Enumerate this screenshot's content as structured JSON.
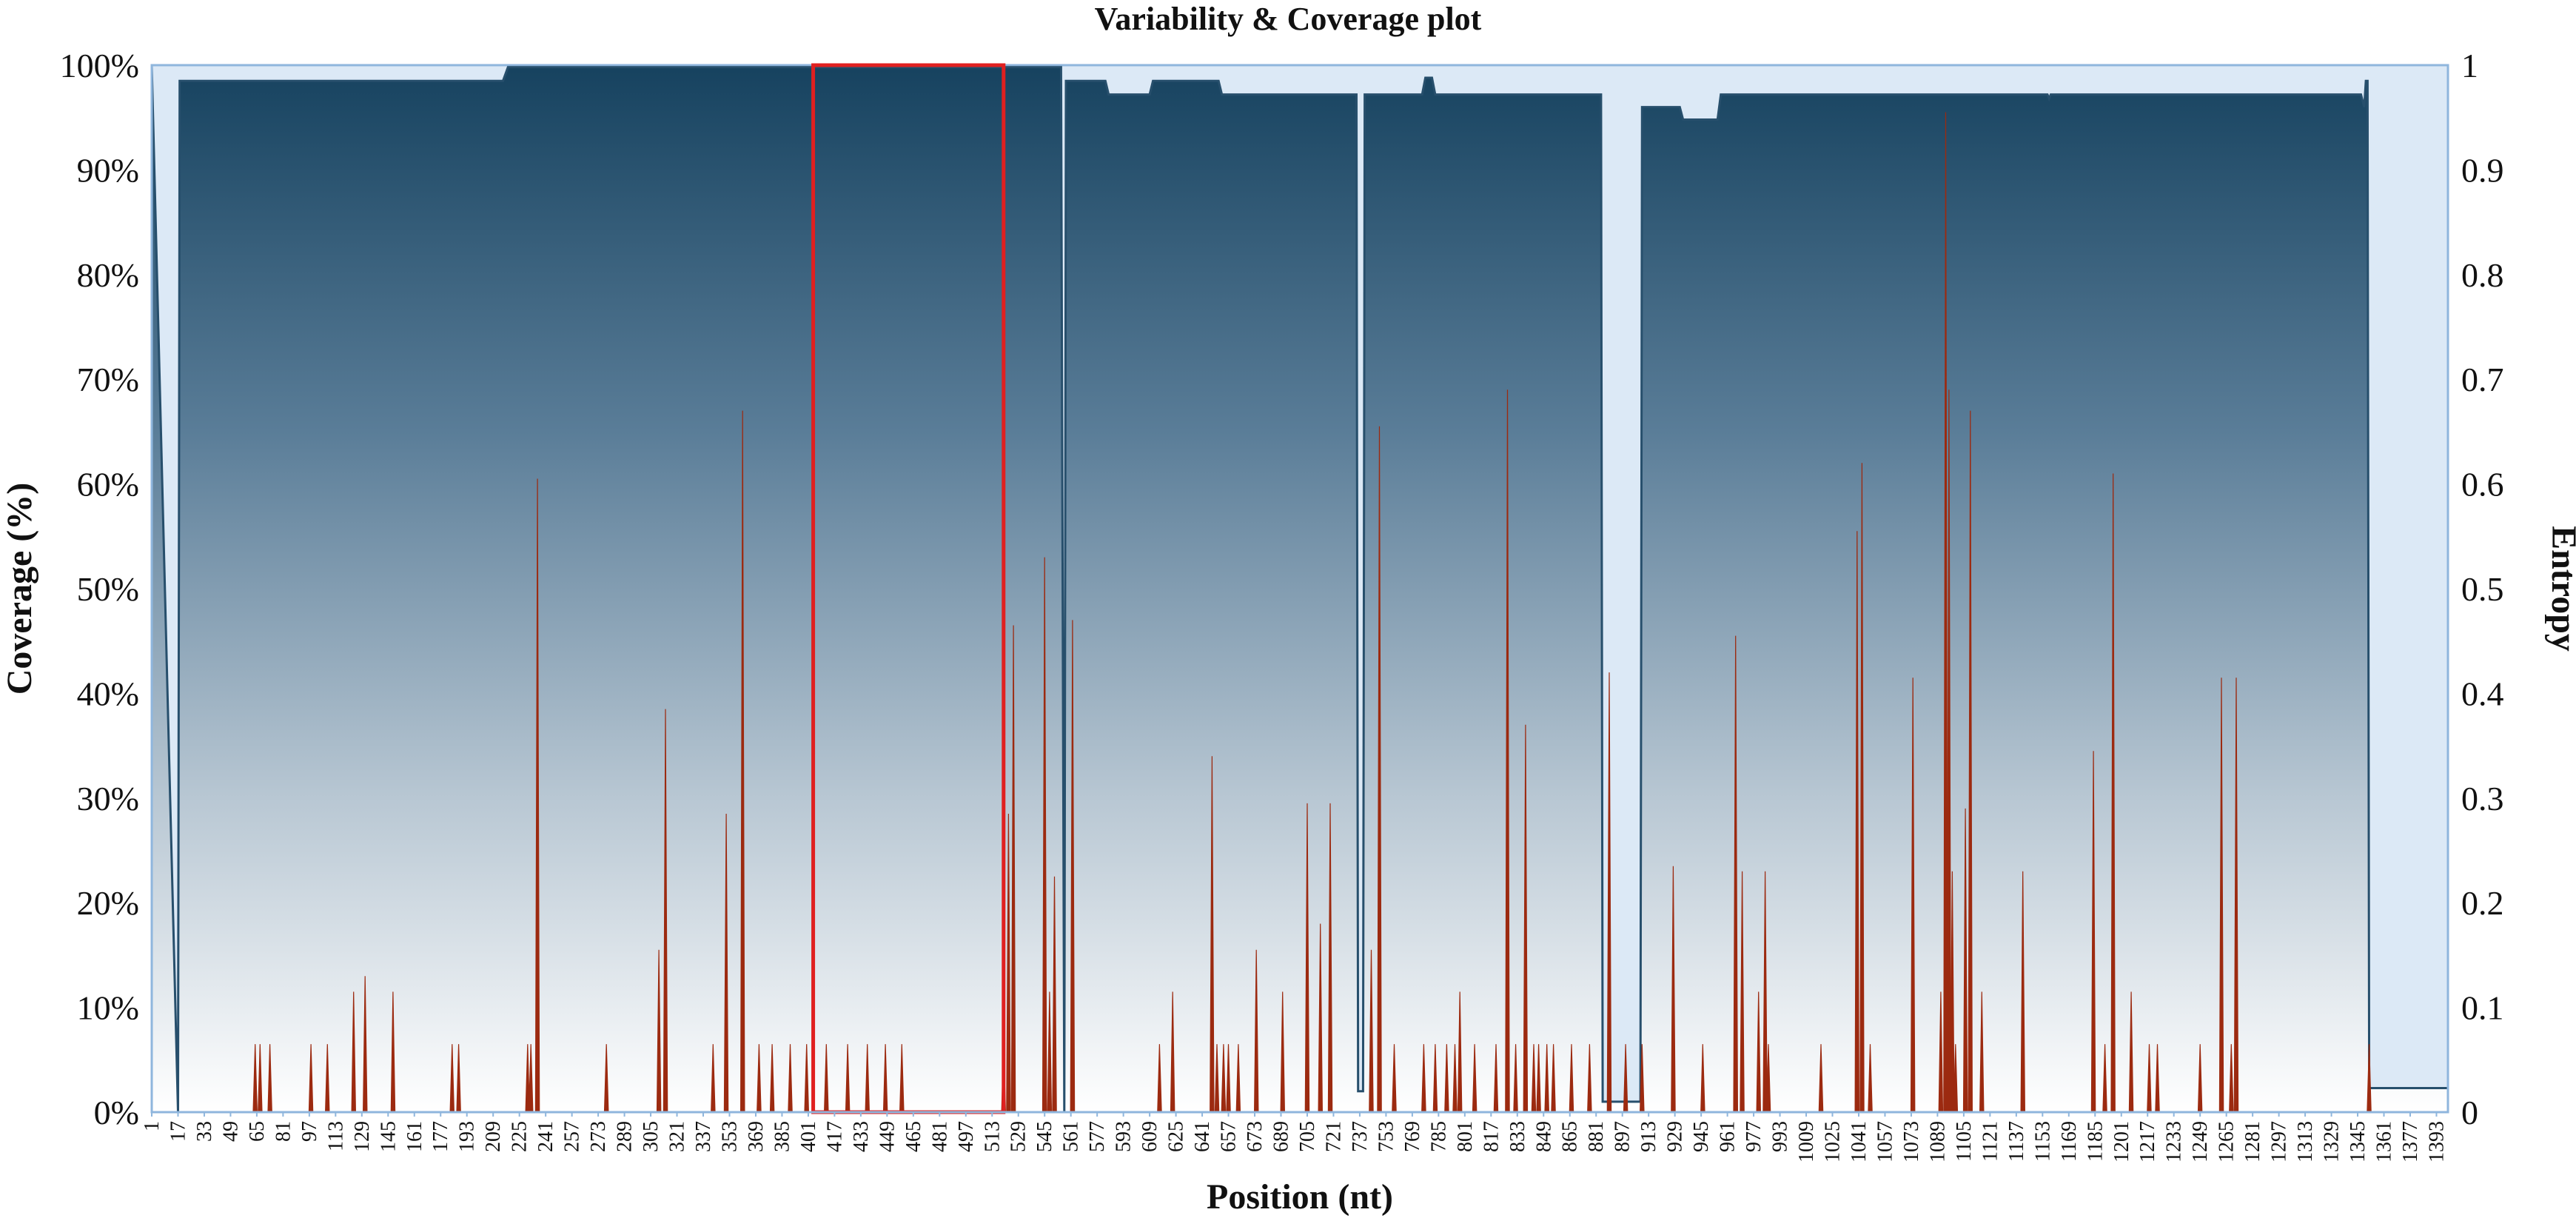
{
  "chart_data": {
    "type": "area",
    "title": "Variability & Coverage plot",
    "xlabel": "Position (nt)",
    "ylabel_left": "Coverage (%)",
    "ylabel_right": "Entropy",
    "xlim": [
      1,
      1400
    ],
    "ylim_left": [
      0,
      100
    ],
    "ylim_right": [
      0,
      1
    ],
    "yticks_left": [
      "0%",
      "10%",
      "20%",
      "30%",
      "40%",
      "50%",
      "60%",
      "70%",
      "80%",
      "90%",
      "100%"
    ],
    "yticks_right": [
      "0",
      "0.1",
      "0.2",
      "0.3",
      "0.4",
      "0.5",
      "0.6",
      "0.7",
      "0.8",
      "0.9",
      "1"
    ],
    "xticks": [
      1,
      17,
      33,
      49,
      65,
      81,
      97,
      113,
      129,
      145,
      161,
      177,
      193,
      209,
      225,
      241,
      257,
      273,
      289,
      305,
      321,
      337,
      353,
      369,
      385,
      401,
      417,
      433,
      449,
      465,
      481,
      497,
      513,
      529,
      545,
      561,
      577,
      593,
      609,
      625,
      641,
      657,
      673,
      689,
      705,
      721,
      737,
      753,
      769,
      785,
      801,
      817,
      833,
      849,
      865,
      881,
      897,
      913,
      929,
      945,
      961,
      977,
      993,
      1009,
      1025,
      1041,
      1057,
      1073,
      1089,
      1105,
      1121,
      1137,
      1153,
      1169,
      1185,
      1201,
      1217,
      1233,
      1249,
      1265,
      1281,
      1297,
      1313,
      1329,
      1345,
      1361,
      1377,
      1393
    ],
    "grid": false,
    "colors": {
      "coverage_top": "#1b4a6b",
      "coverage_bottom": "#ffffff",
      "coverage_line": "#274f6c",
      "background_band": "#dce9f6",
      "background_edge": "#8fb6dd",
      "entropy": "#9c2a10",
      "highlight_box": "#e02020"
    },
    "series": [
      {
        "name": "Coverage",
        "axis": "left",
        "points": [
          [
            1,
            100
          ],
          [
            17,
            0
          ],
          [
            18,
            98.5
          ],
          [
            215,
            98.5
          ],
          [
            218,
            99.8
          ],
          [
            555,
            99.8
          ],
          [
            557,
            0
          ],
          [
            558,
            98.5
          ],
          [
            582,
            98.5
          ],
          [
            584,
            97.2
          ],
          [
            609,
            97.2
          ],
          [
            611,
            98.5
          ],
          [
            651,
            98.5
          ],
          [
            653,
            97.2
          ],
          [
            735,
            97.2
          ],
          [
            736,
            2
          ],
          [
            739,
            2
          ],
          [
            740,
            97.2
          ],
          [
            775,
            97.2
          ],
          [
            777,
            98.8
          ],
          [
            781,
            98.8
          ],
          [
            783,
            97.2
          ],
          [
            884,
            97.2
          ],
          [
            885,
            1
          ],
          [
            908,
            1
          ],
          [
            909,
            96
          ],
          [
            932,
            96
          ],
          [
            934,
            94.8
          ],
          [
            955,
            94.8
          ],
          [
            957,
            97.2
          ],
          [
            1156,
            97.2
          ],
          [
            1157,
            96.8
          ],
          [
            1158,
            97.2
          ],
          [
            1347,
            97.2
          ],
          [
            1349,
            96
          ],
          [
            1350,
            98.5
          ],
          [
            1351,
            98.5
          ],
          [
            1352,
            2.3
          ],
          [
            1400,
            2.3
          ]
        ]
      },
      {
        "name": "Entropy",
        "axis": "right",
        "spikes": [
          [
            64,
            0.065
          ],
          [
            67,
            0.065
          ],
          [
            73,
            0.065
          ],
          [
            98,
            0.065
          ],
          [
            108,
            0.065
          ],
          [
            124,
            0.115
          ],
          [
            131,
            0.13
          ],
          [
            148,
            0.115
          ],
          [
            184,
            0.065
          ],
          [
            188,
            0.065
          ],
          [
            230,
            0.065
          ],
          [
            232,
            0.065
          ],
          [
            236,
            0.605
          ],
          [
            278,
            0.065
          ],
          [
            310,
            0.155
          ],
          [
            314,
            0.385
          ],
          [
            343,
            0.065
          ],
          [
            351,
            0.285
          ],
          [
            361,
            0.67
          ],
          [
            371,
            0.065
          ],
          [
            379,
            0.065
          ],
          [
            390,
            0.065
          ],
          [
            400,
            0.065
          ],
          [
            412,
            0.065
          ],
          [
            425,
            0.065
          ],
          [
            437,
            0.065
          ],
          [
            448,
            0.065
          ],
          [
            458,
            0.065
          ],
          [
            520,
            0.065
          ],
          [
            523,
            0.285
          ],
          [
            526,
            0.465
          ],
          [
            545,
            0.53
          ],
          [
            548,
            0.115
          ],
          [
            551,
            0.225
          ],
          [
            562,
            0.47
          ],
          [
            615,
            0.065
          ],
          [
            623,
            0.115
          ],
          [
            647,
            0.34
          ],
          [
            650,
            0.065
          ],
          [
            654,
            0.065
          ],
          [
            657,
            0.065
          ],
          [
            663,
            0.065
          ],
          [
            674,
            0.155
          ],
          [
            690,
            0.115
          ],
          [
            705,
            0.295
          ],
          [
            713,
            0.18
          ],
          [
            719,
            0.295
          ],
          [
            744,
            0.155
          ],
          [
            749,
            0.655
          ],
          [
            758,
            0.065
          ],
          [
            776,
            0.065
          ],
          [
            783,
            0.065
          ],
          [
            790,
            0.065
          ],
          [
            795,
            0.065
          ],
          [
            798,
            0.115
          ],
          [
            807,
            0.065
          ],
          [
            820,
            0.065
          ],
          [
            827,
            0.69
          ],
          [
            832,
            0.065
          ],
          [
            838,
            0.37
          ],
          [
            843,
            0.065
          ],
          [
            846,
            0.065
          ],
          [
            851,
            0.065
          ],
          [
            855,
            0.065
          ],
          [
            866,
            0.065
          ],
          [
            877,
            0.065
          ],
          [
            889,
            0.42
          ],
          [
            899,
            0.065
          ],
          [
            909,
            0.065
          ],
          [
            928,
            0.235
          ],
          [
            946,
            0.065
          ],
          [
            966,
            0.455
          ],
          [
            970,
            0.23
          ],
          [
            980,
            0.115
          ],
          [
            984,
            0.23
          ],
          [
            986,
            0.065
          ],
          [
            1018,
            0.065
          ],
          [
            1040,
            0.555
          ],
          [
            1043,
            0.62
          ],
          [
            1048,
            0.065
          ],
          [
            1074,
            0.415
          ],
          [
            1091,
            0.115
          ],
          [
            1094,
            0.955
          ],
          [
            1096,
            0.69
          ],
          [
            1098,
            0.23
          ],
          [
            1100,
            0.065
          ],
          [
            1106,
            0.29
          ],
          [
            1109,
            0.67
          ],
          [
            1116,
            0.115
          ],
          [
            1141,
            0.23
          ],
          [
            1184,
            0.345
          ],
          [
            1191,
            0.065
          ],
          [
            1196,
            0.61
          ],
          [
            1207,
            0.115
          ],
          [
            1218,
            0.065
          ],
          [
            1223,
            0.065
          ],
          [
            1249,
            0.065
          ],
          [
            1262,
            0.415
          ],
          [
            1268,
            0.065
          ],
          [
            1271,
            0.415
          ],
          [
            1352,
            0.065
          ]
        ]
      }
    ],
    "highlight_region": [
      404,
      520
    ]
  }
}
